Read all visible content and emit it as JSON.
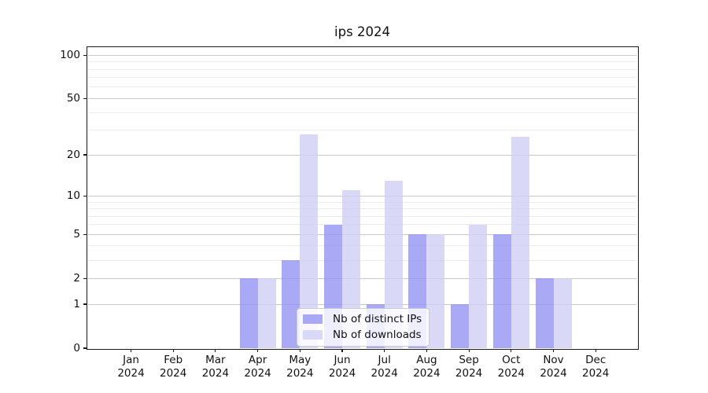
{
  "chart_data": {
    "type": "bar",
    "title": "ips 2024",
    "x_year": "2024",
    "categories": [
      "Jan",
      "Feb",
      "Mar",
      "Apr",
      "May",
      "Jun",
      "Jul",
      "Aug",
      "Sep",
      "Oct",
      "Nov",
      "Dec"
    ],
    "series": [
      {
        "name": "Nb of distinct IPs",
        "color_solid": "#a9a9f5",
        "color_rgba": "rgba(148,148,243,0.8)",
        "values": [
          0,
          0,
          0,
          2,
          3,
          6,
          1,
          5,
          1,
          5,
          2,
          0
        ]
      },
      {
        "name": "Nb of downloads",
        "color_solid": "#d9d9f7",
        "color_rgba": "rgba(208,208,245,0.8)",
        "values": [
          0,
          0,
          0,
          2,
          28,
          11,
          13,
          5,
          6,
          27,
          2,
          0
        ]
      }
    ],
    "y_axis": {
      "scale": "log1p",
      "major_ticks": [
        0,
        1,
        2,
        5,
        10,
        20,
        50,
        100
      ],
      "minor_ticks": [
        3,
        4,
        6,
        7,
        8,
        9,
        30,
        40,
        60,
        70,
        80,
        90
      ],
      "ylim": [
        0,
        115
      ]
    },
    "legend": {
      "position": "lower center",
      "entries": [
        "Nb of distinct IPs",
        "Nb of downloads"
      ]
    },
    "grid": "on",
    "colors": {
      "major_grid": "#c9c9c9",
      "minor_grid": "#ececec",
      "spine": "#1a1a1a",
      "background": "#ffffff"
    }
  }
}
